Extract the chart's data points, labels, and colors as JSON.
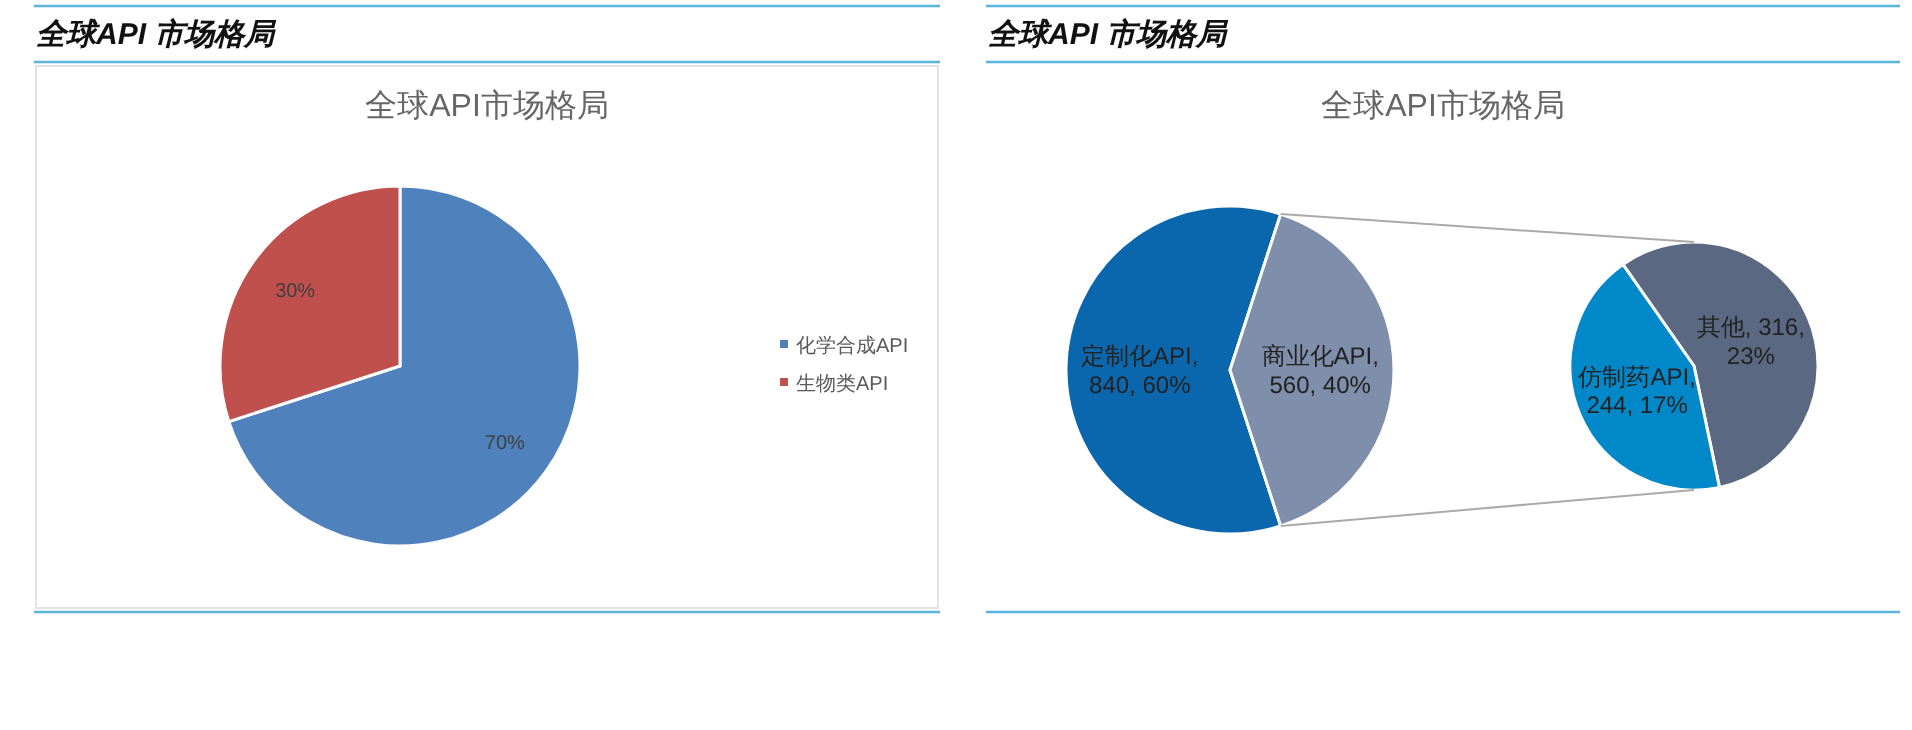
{
  "chart_data": [
    {
      "type": "pie",
      "title": "全球API 市场格局",
      "subtitle": "全球API市场格局",
      "categories": [
        "化学合成API",
        "生物类API"
      ],
      "values": [
        70,
        30
      ],
      "colors": [
        "#4f81bd",
        "#c0504d"
      ],
      "value_labels": [
        "70%",
        "30%"
      ],
      "legend": "right"
    },
    {
      "type": "pie",
      "title": "全球API 市场格局",
      "subtitle": "全球API市场格局",
      "categories": [
        "定制化API",
        "商业化API"
      ],
      "values": [
        60,
        40
      ],
      "colors": [
        "#0b67ad",
        "#7f8fab"
      ],
      "value_labels": [
        ", 840, 60%",
        ", 560, 40%"
      ]
    },
    {
      "type": "pie",
      "categories": [
        "其他",
        "仿制药API"
      ],
      "values": [
        316,
        244
      ],
      "colors": [
        "#5a6882",
        "#0088c9"
      ],
      "value_labels": [
        ", 316, 23%",
        ", 244, 17%"
      ]
    }
  ]
}
